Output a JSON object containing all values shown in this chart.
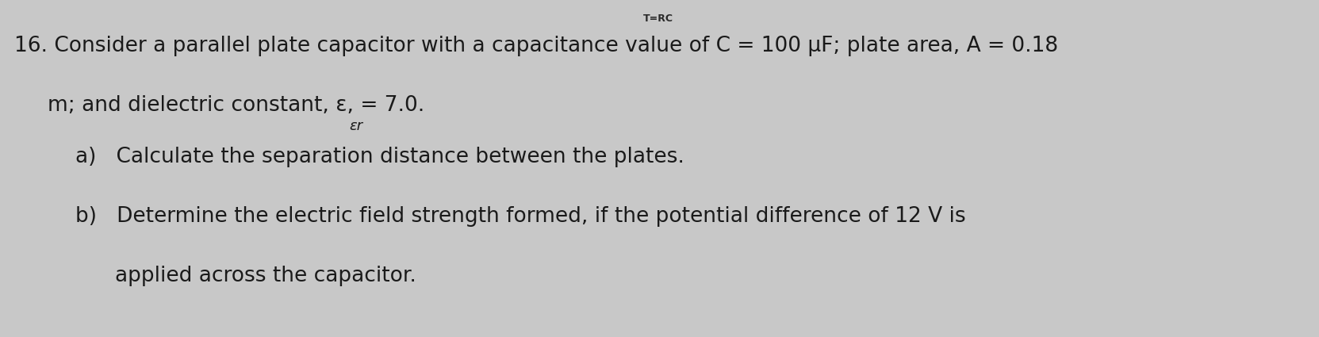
{
  "bg_color": "#c8c8c8",
  "title_text": "T=RC",
  "title_fontsize": 9,
  "title_color": "#2a2a2a",
  "line1_text": "16. Consider a parallel plate capacitor with a capacitance value of C = 100 μF; plate area, A = 0.18",
  "line2_text": "m; and dielectric constant, ε, = 7.0.",
  "line2b_text": "εr",
  "line3_text": "a)   Calculate the separation distance between the plates.",
  "line4_text": "b)   Determine the electric field strength formed, if the potential difference of 12 V is",
  "line5_text": "        applied across the capacitor.",
  "main_fontsize": 19,
  "small_fontsize": 13,
  "text_color": "#1a1a1a"
}
